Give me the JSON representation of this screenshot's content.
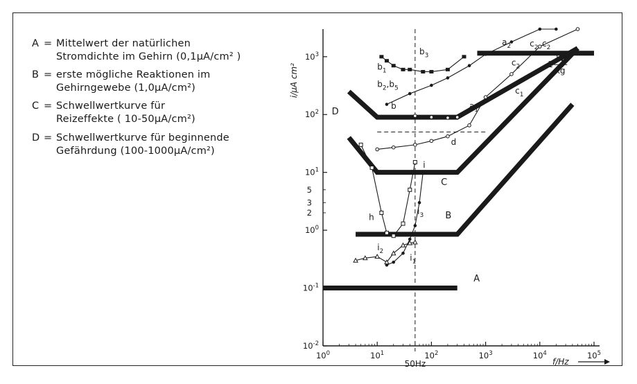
{
  "legend": [
    {
      "key": "A",
      "line1": "Mittelwert der natürlichen",
      "line2": "Stromdichte im Gehirn (0,1μA/cm² )"
    },
    {
      "key": "B",
      "line1": "erste mögliche Reaktionen im",
      "line2": "Gehirngewebe (1,0μA/cm²)"
    },
    {
      "key": "C",
      "line1": "Schwellwertkurve für",
      "line2": "Reizeffekte ( 10-50μA/cm²)"
    },
    {
      "key": "D",
      "line1": "Schwellwertkurve für beginnende",
      "line2": "Gefährdung (100-1000μA/cm²)"
    }
  ],
  "legend_eq": "=",
  "chart_data": {
    "type": "line",
    "xscale": "log",
    "yscale": "log",
    "xlim": [
      1,
      100000
    ],
    "ylim": [
      0.01,
      3000
    ],
    "xlabel": "f/Hz",
    "ylabel": "i/μA cm²",
    "xticks": [
      {
        "value": 1,
        "base": "10",
        "exp": "0"
      },
      {
        "value": 10,
        "base": "10",
        "exp": "1"
      },
      {
        "value": 100,
        "base": "10",
        "exp": "2"
      },
      {
        "value": 1000,
        "base": "10",
        "exp": "3"
      },
      {
        "value": 10000,
        "base": "10",
        "exp": "4"
      },
      {
        "value": 100000,
        "base": "10",
        "exp": "5"
      }
    ],
    "yticks": [
      {
        "value": 0.01,
        "base": "10",
        "exp": "-2"
      },
      {
        "value": 0.1,
        "base": "10",
        "exp": "-1"
      },
      {
        "value": 1,
        "base": "10",
        "exp": "0"
      },
      {
        "value": 10,
        "base": "10",
        "exp": "1"
      },
      {
        "value": 100,
        "base": "10",
        "exp": "2"
      },
      {
        "value": 1000,
        "base": "10",
        "exp": "3"
      }
    ],
    "yminor": [
      {
        "value": 2,
        "label": "2"
      },
      {
        "value": 3,
        "label": "3"
      },
      {
        "value": 5,
        "label": "5"
      }
    ],
    "vline": {
      "x": 50,
      "label": "50Hz"
    },
    "hline": {
      "y": 50,
      "x_from": 10,
      "x_to": 1000
    },
    "thresholds": [
      {
        "name": "A",
        "points": [
          [
            1,
            0.1
          ],
          [
            300,
            0.1
          ]
        ],
        "label_at": [
          600,
          0.13
        ]
      },
      {
        "name": "B",
        "points": [
          [
            4,
            0.85
          ],
          [
            300,
            0.85
          ],
          [
            40000,
            150
          ]
        ],
        "label_at": [
          180,
          1.6
        ]
      },
      {
        "name": "C",
        "points": [
          [
            3,
            40
          ],
          [
            10,
            10
          ],
          [
            300,
            10
          ],
          [
            50000,
            1400
          ]
        ],
        "label_at": [
          150,
          6
        ]
      },
      {
        "name": "D",
        "points": [
          [
            3,
            250
          ],
          [
            10,
            90
          ],
          [
            300,
            90
          ],
          [
            50000,
            1400
          ]
        ],
        "label_at": [
          1.45,
          100
        ]
      },
      {
        "name": "",
        "points": [
          [
            700,
            1150
          ],
          [
            100000,
            1150
          ]
        ],
        "label_at": null
      }
    ],
    "unit_label": {
      "prefix": "1",
      "num": "W",
      "den": "kg",
      "at": [
        14000,
        750
      ]
    },
    "series": [
      {
        "name": "",
        "marker": "square",
        "points": [
          [
            5,
            30
          ],
          [
            8,
            12
          ],
          [
            12,
            2
          ],
          [
            15,
            0.9
          ],
          [
            20,
            0.8
          ],
          [
            30,
            1.3
          ],
          [
            40,
            5
          ],
          [
            50,
            15
          ]
        ]
      },
      {
        "name": "",
        "marker": "square-filled",
        "points": [
          [
            12,
            1000
          ],
          [
            15,
            850
          ],
          [
            20,
            700
          ],
          [
            30,
            600
          ],
          [
            40,
            600
          ],
          [
            70,
            550
          ],
          [
            100,
            550
          ],
          [
            200,
            600
          ],
          [
            400,
            1000
          ]
        ]
      },
      {
        "name": "",
        "marker": "circle-filled",
        "points": [
          [
            15,
            150
          ],
          [
            40,
            230
          ],
          [
            100,
            320
          ],
          [
            200,
            430
          ],
          [
            500,
            700
          ],
          [
            1000,
            1100
          ],
          [
            3000,
            1800
          ],
          [
            10000,
            3000
          ],
          [
            20000,
            4500
          ]
        ]
      },
      {
        "name": "",
        "marker": "circle-open",
        "points": [
          [
            50,
            95
          ],
          [
            100,
            90
          ],
          [
            200,
            88
          ],
          [
            300,
            90
          ]
        ]
      },
      {
        "name": "",
        "marker": "circle-open",
        "points": [
          [
            10,
            25
          ],
          [
            20,
            27
          ],
          [
            50,
            30
          ],
          [
            100,
            35
          ],
          [
            200,
            42
          ],
          [
            500,
            65
          ],
          [
            1000,
            200
          ],
          [
            3000,
            500
          ],
          [
            10000,
            1500
          ],
          [
            50000,
            3500
          ]
        ]
      },
      {
        "name": "",
        "marker": "circle-filled",
        "points": [
          [
            15,
            0.25
          ],
          [
            20,
            0.28
          ],
          [
            30,
            0.4
          ],
          [
            40,
            0.7
          ],
          [
            50,
            1.2
          ],
          [
            60,
            3
          ],
          [
            70,
            10
          ]
        ]
      },
      {
        "name": "",
        "marker": "triangle-open",
        "points": [
          [
            4,
            0.3
          ],
          [
            6,
            0.33
          ],
          [
            10,
            0.35
          ],
          [
            15,
            0.28
          ],
          [
            20,
            0.4
          ],
          [
            30,
            0.55
          ],
          [
            40,
            0.6
          ],
          [
            50,
            0.62
          ]
        ]
      }
    ],
    "annotations": [
      {
        "text": "b",
        "sub": "1",
        "at": [
          10,
          600
        ]
      },
      {
        "text": "b",
        "sub": "3",
        "at": [
          60,
          1100
        ]
      },
      {
        "text": "b",
        "sub": "2",
        "at": [
          10,
          300
        ],
        "tail": ",b",
        "tail_sub": "5"
      },
      {
        "text": "b",
        "sub": "",
        "at": [
          18,
          125
        ]
      },
      {
        "text": "a",
        "sub": "1",
        "at": [
          500,
          125
        ]
      },
      {
        "text": "a",
        "sub": "2",
        "at": [
          2000,
          1600
        ]
      },
      {
        "text": "c",
        "sub": "2",
        "at": [
          3000,
          700
        ]
      },
      {
        "text": "c",
        "sub": "1",
        "at": [
          3500,
          230
        ]
      },
      {
        "text": "c",
        "sub": "2",
        "at": [
          6500,
          1500
        ]
      },
      {
        "text": "c",
        "sub": "2",
        "at": [
          11000,
          1500
        ]
      },
      {
        "text": "d",
        "sub": "",
        "at": [
          230,
          30
        ]
      },
      {
        "text": "i",
        "sub": "",
        "at": [
          70,
          12
        ]
      },
      {
        "text": "h",
        "sub": "",
        "at": [
          7,
          1.5
        ]
      },
      {
        "text": "i",
        "sub": "2",
        "at": [
          10,
          0.45
        ]
      },
      {
        "text": "i",
        "sub": "1",
        "at": [
          40,
          0.3
        ]
      },
      {
        "text": "i",
        "sub": "3",
        "at": [
          55,
          1.9
        ]
      }
    ]
  }
}
